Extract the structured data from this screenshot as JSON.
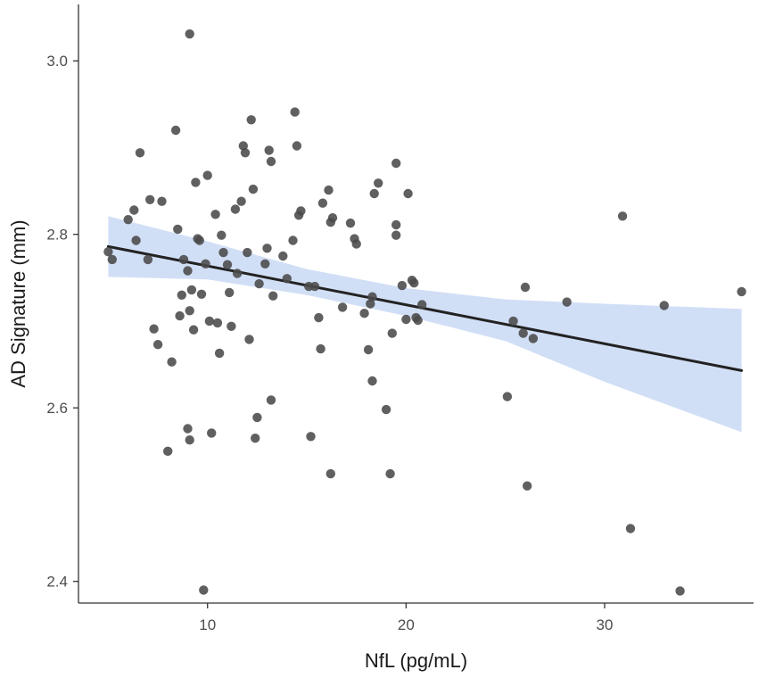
{
  "chart_data": {
    "type": "scatter",
    "title": "",
    "xlabel": "NfL (pg/mL)",
    "ylabel": "AD Signature (mm)",
    "xlim": [
      3.5,
      37.5
    ],
    "ylim": [
      2.375,
      3.065
    ],
    "x_ticks": [
      10,
      20,
      30
    ],
    "x_tick_labels": [
      "10",
      "20",
      "30"
    ],
    "y_ticks": [
      2.4,
      2.6,
      2.8,
      3.0
    ],
    "y_tick_labels": [
      "2.4",
      "2.6",
      "2.8",
      "3.0"
    ],
    "grid": false,
    "legend": "none",
    "colors": {
      "points": "#4a4a4a",
      "fit_line": "#222222",
      "confidence_band": "#c9d9f5",
      "axis": "#333333"
    },
    "series": [
      {
        "points": [
          [
            5.0,
            2.78
          ],
          [
            5.2,
            2.771
          ],
          [
            6.0,
            2.817
          ],
          [
            6.4,
            2.793
          ],
          [
            6.3,
            2.828
          ],
          [
            6.6,
            2.894
          ],
          [
            7.0,
            2.771
          ],
          [
            7.1,
            2.84
          ],
          [
            7.7,
            2.838
          ],
          [
            7.3,
            2.691
          ],
          [
            7.5,
            2.673
          ],
          [
            8.0,
            2.55
          ],
          [
            8.2,
            2.653
          ],
          [
            8.4,
            2.92
          ],
          [
            8.5,
            2.806
          ],
          [
            8.6,
            2.706
          ],
          [
            8.7,
            2.73
          ],
          [
            8.8,
            2.771
          ],
          [
            9.0,
            2.758
          ],
          [
            9.1,
            2.712
          ],
          [
            9.2,
            2.736
          ],
          [
            9.3,
            2.69
          ],
          [
            9.4,
            2.86
          ],
          [
            9.5,
            2.795
          ],
          [
            9.6,
            2.793
          ],
          [
            9.7,
            2.731
          ],
          [
            9.9,
            2.766
          ],
          [
            9.1,
            3.031
          ],
          [
            9.0,
            2.576
          ],
          [
            9.1,
            2.563
          ],
          [
            9.8,
            2.39
          ],
          [
            10.0,
            2.868
          ],
          [
            10.1,
            2.7
          ],
          [
            10.2,
            2.571
          ],
          [
            10.4,
            2.823
          ],
          [
            10.5,
            2.698
          ],
          [
            10.6,
            2.663
          ],
          [
            10.7,
            2.799
          ],
          [
            10.8,
            2.779
          ],
          [
            11.0,
            2.765
          ],
          [
            11.1,
            2.733
          ],
          [
            11.2,
            2.694
          ],
          [
            11.4,
            2.829
          ],
          [
            11.5,
            2.755
          ],
          [
            11.7,
            2.838
          ],
          [
            11.8,
            2.902
          ],
          [
            11.9,
            2.894
          ],
          [
            12.0,
            2.779
          ],
          [
            12.1,
            2.679
          ],
          [
            12.2,
            2.932
          ],
          [
            12.3,
            2.852
          ],
          [
            12.4,
            2.565
          ],
          [
            12.5,
            2.589
          ],
          [
            12.6,
            2.743
          ],
          [
            12.9,
            2.766
          ],
          [
            13.0,
            2.784
          ],
          [
            13.1,
            2.897
          ],
          [
            13.2,
            2.884
          ],
          [
            13.3,
            2.729
          ],
          [
            13.2,
            2.609
          ],
          [
            13.8,
            2.775
          ],
          [
            14.0,
            2.749
          ],
          [
            14.3,
            2.793
          ],
          [
            14.4,
            2.941
          ],
          [
            14.5,
            2.902
          ],
          [
            14.6,
            2.822
          ],
          [
            14.7,
            2.827
          ],
          [
            15.1,
            2.74
          ],
          [
            15.2,
            2.567
          ],
          [
            15.4,
            2.74
          ],
          [
            15.6,
            2.704
          ],
          [
            15.7,
            2.668
          ],
          [
            15.8,
            2.836
          ],
          [
            16.1,
            2.851
          ],
          [
            16.2,
            2.814
          ],
          [
            16.3,
            2.819
          ],
          [
            16.2,
            2.524
          ],
          [
            16.8,
            2.716
          ],
          [
            17.2,
            2.813
          ],
          [
            17.4,
            2.795
          ],
          [
            17.5,
            2.789
          ],
          [
            17.9,
            2.709
          ],
          [
            18.1,
            2.667
          ],
          [
            18.2,
            2.72
          ],
          [
            18.3,
            2.631
          ],
          [
            18.3,
            2.728
          ],
          [
            18.4,
            2.847
          ],
          [
            18.6,
            2.859
          ],
          [
            19.0,
            2.598
          ],
          [
            19.2,
            2.524
          ],
          [
            19.3,
            2.686
          ],
          [
            19.5,
            2.882
          ],
          [
            19.5,
            2.811
          ],
          [
            19.5,
            2.799
          ],
          [
            19.8,
            2.741
          ],
          [
            20.0,
            2.702
          ],
          [
            20.1,
            2.847
          ],
          [
            20.3,
            2.747
          ],
          [
            20.4,
            2.744
          ],
          [
            20.5,
            2.704
          ],
          [
            20.6,
            2.701
          ],
          [
            20.8,
            2.719
          ],
          [
            25.1,
            2.613
          ],
          [
            25.4,
            2.7
          ],
          [
            25.9,
            2.686
          ],
          [
            26.0,
            2.739
          ],
          [
            26.1,
            2.51
          ],
          [
            26.4,
            2.68
          ],
          [
            28.1,
            2.722
          ],
          [
            30.9,
            2.821
          ],
          [
            31.3,
            2.461
          ],
          [
            33.0,
            2.718
          ],
          [
            33.8,
            2.389
          ],
          [
            36.9,
            2.734
          ]
        ]
      }
    ],
    "fit": {
      "method": "linear",
      "x_range": [
        5.0,
        36.9
      ],
      "line": [
        [
          5.0,
          2.786
        ],
        [
          36.9,
          2.643
        ]
      ],
      "band": [
        [
          5.0,
          2.751,
          2.821
        ],
        [
          10.0,
          2.748,
          2.792
        ],
        [
          15.0,
          2.73,
          2.76
        ],
        [
          20.0,
          2.706,
          2.738
        ],
        [
          25.0,
          2.677,
          2.725
        ],
        [
          30.0,
          2.63,
          2.72
        ],
        [
          36.9,
          2.572,
          2.714
        ]
      ]
    }
  }
}
